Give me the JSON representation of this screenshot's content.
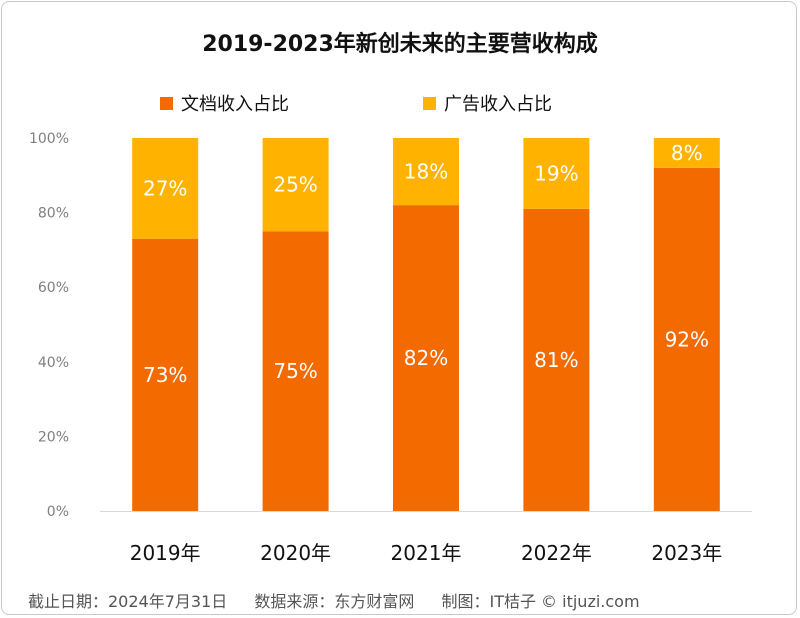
{
  "chart_data": {
    "type": "bar",
    "stacked": true,
    "title": "2019-2023年新创未来的主要营收构成",
    "categories": [
      "2019年",
      "2020年",
      "2021年",
      "2022年",
      "2023年"
    ],
    "series": [
      {
        "name": "文档收入占比",
        "color": "#f26a00",
        "values": [
          73,
          75,
          82,
          81,
          92
        ],
        "labels": [
          "73%",
          "75%",
          "82%",
          "81%",
          "92%"
        ]
      },
      {
        "name": "广告收入占比",
        "color": "#ffb300",
        "values": [
          27,
          25,
          18,
          19,
          8
        ],
        "labels": [
          "27%",
          "25%",
          "18%",
          "19%",
          "8%"
        ]
      }
    ],
    "ylim": [
      0,
      100
    ],
    "yticks": [
      "0%",
      "20%",
      "40%",
      "60%",
      "80%",
      "100%"
    ],
    "xlabel": "",
    "ylabel": "",
    "legend": "top"
  },
  "footer": {
    "date": "截止日期：2024年7月31日",
    "source": "数据来源：东方财富网",
    "credit": "制图：IT桔子 © itjuzi.com"
  }
}
